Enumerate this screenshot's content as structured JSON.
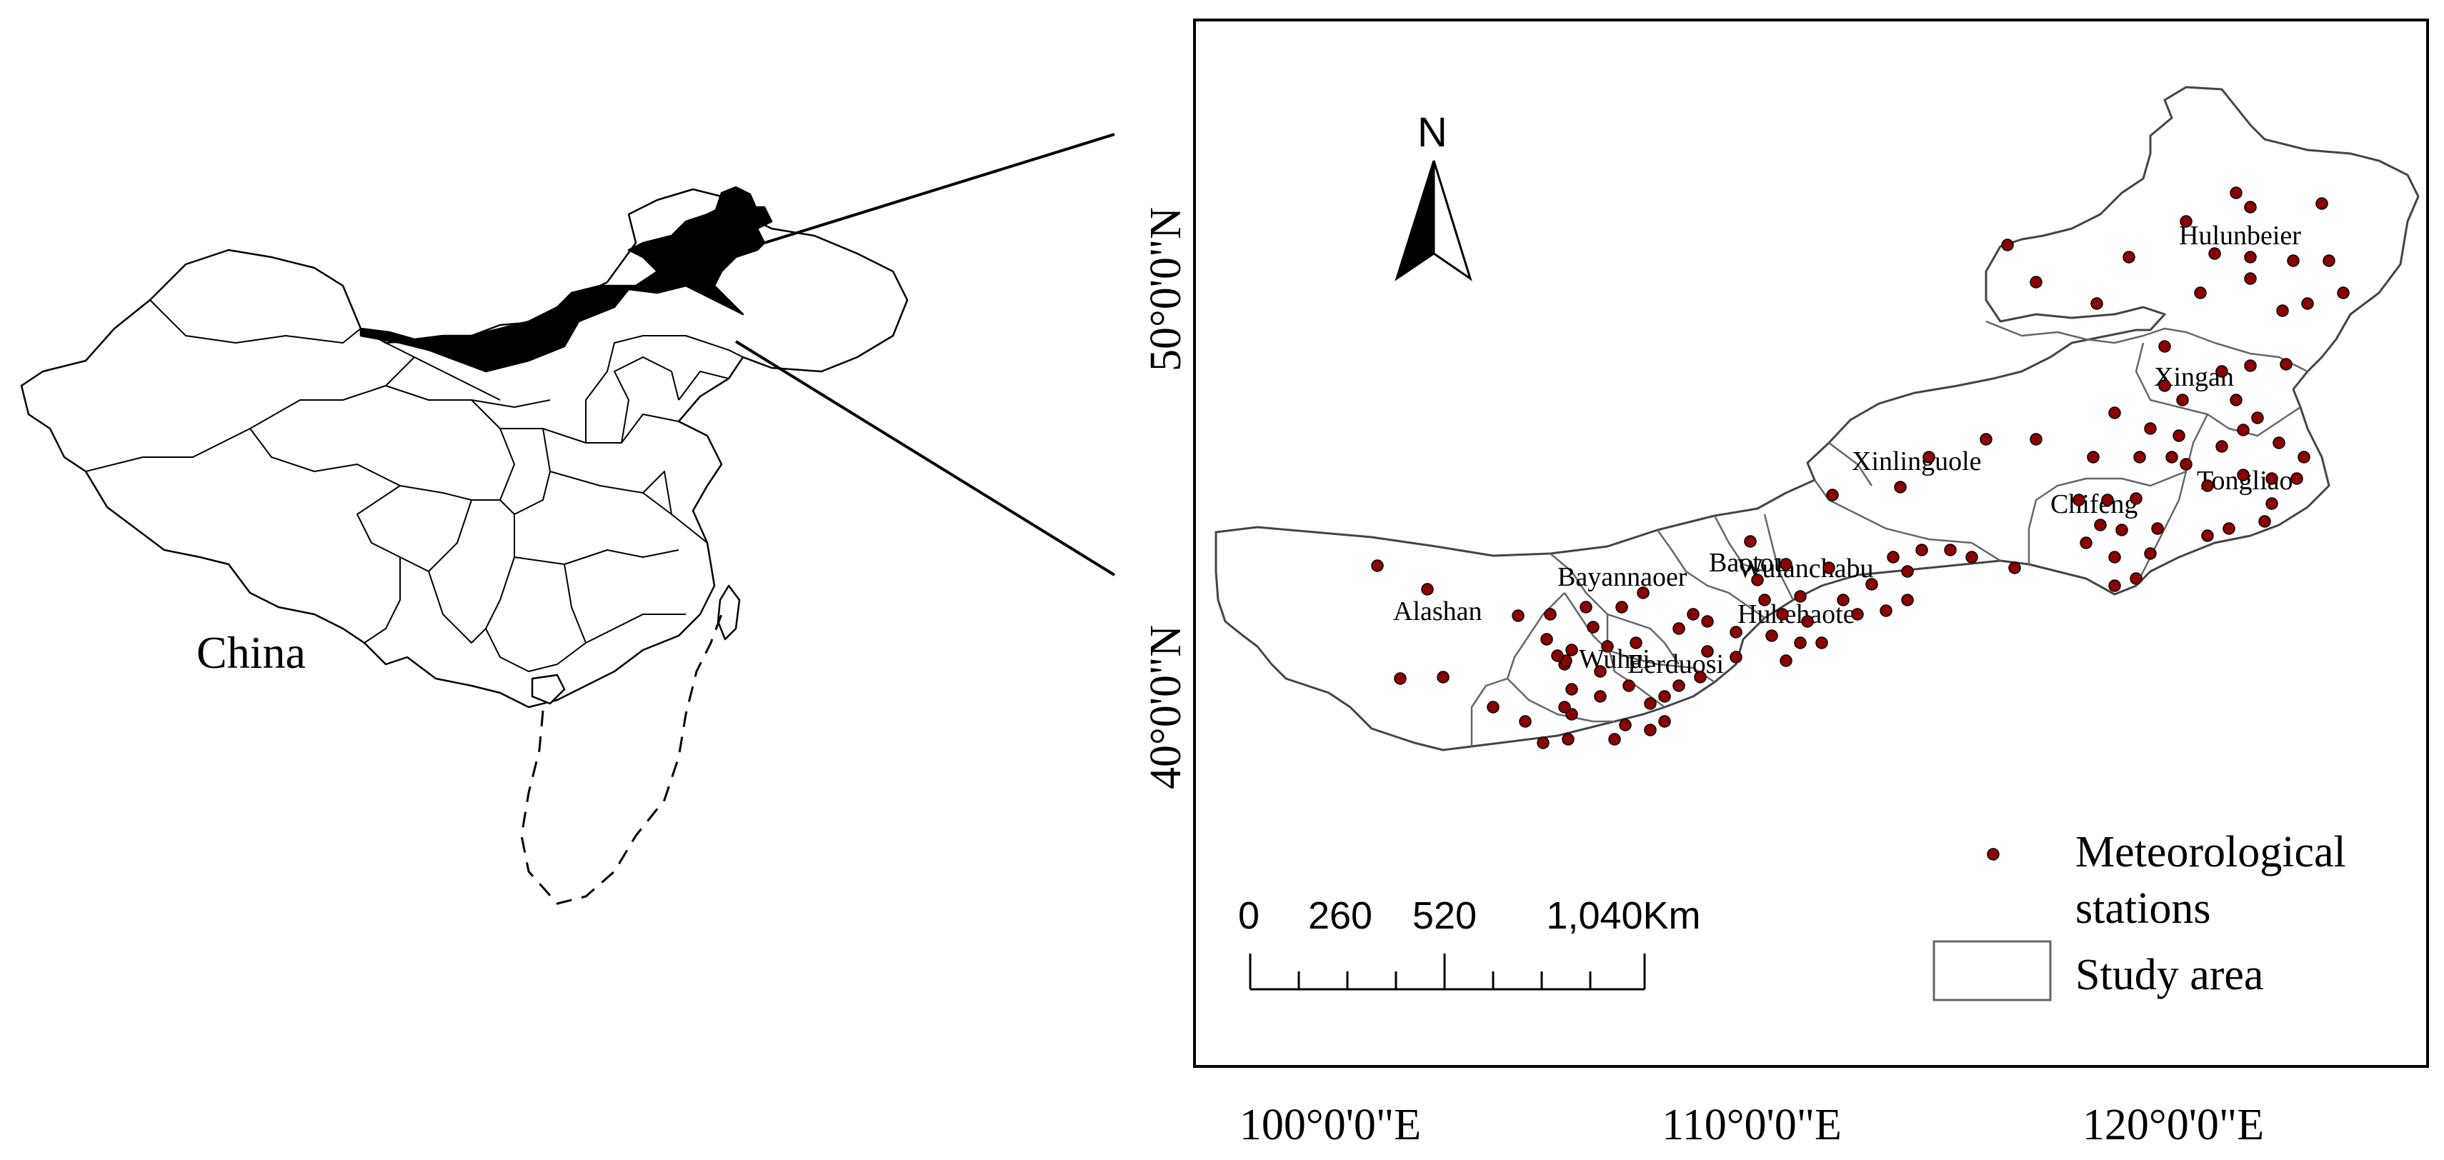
{
  "inset": {
    "label": "China",
    "colors": {
      "highlight": "#000000",
      "province_fill": "#ffffff",
      "stroke": "#000000"
    }
  },
  "map": {
    "north_arrow": {
      "label": "N",
      "icon": "north-arrow-icon"
    },
    "lat_labels": [
      "50°0'0\"N",
      "40°0'0\"N"
    ],
    "lon_labels": [
      "100°0'0\"E",
      "110°0'0\"E",
      "120°0'0\"E"
    ],
    "regions": [
      "Hulunbeier",
      "Xingan",
      "Xinlinguole",
      "Tongliao",
      "Chifeng",
      "Bayannaoer",
      "Baotou",
      "Wulanchabu",
      "Huhehaote",
      "Alashan",
      "Wuhai",
      "Eerduosi"
    ],
    "scale_bar": {
      "labels": [
        "0",
        "260",
        "520",
        "1,040"
      ],
      "unit": "Km"
    },
    "legend": {
      "stations_label_line1": "Meteorological",
      "stations_label_line2": "stations",
      "study_area_label": "Study area"
    },
    "colors": {
      "station": "#8b0000",
      "boundary": "#555555",
      "frame": "#000000"
    }
  }
}
